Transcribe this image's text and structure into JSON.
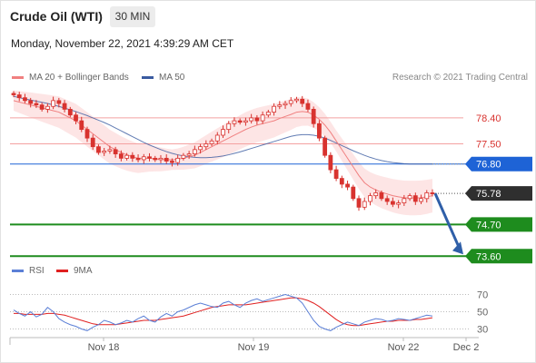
{
  "header": {
    "title": "Crude Oil (WTI)",
    "timeframe": "30 MIN"
  },
  "datetime": "Monday, November 22, 2021 4:39:29 AM CET",
  "legend": {
    "ma20": "MA 20 + Bollinger Bands",
    "ma50": "MA 50",
    "credit": "Research © 2021 Trading Central",
    "rsi": "RSI",
    "ma9": "9MA"
  },
  "colors": {
    "ma20": "#f08080",
    "ma50": "#3a5ba0",
    "band": "#fde0e0",
    "candle": "#d8332f",
    "support": "#1e8c1e",
    "pivot": "#1e63d6",
    "last": "#2f2f2f",
    "rsi": "#5b7fd6",
    "rsi_ma": "#e02020",
    "arrow": "#2f5fa8"
  },
  "chart_data": [
    {
      "type": "line",
      "title": "",
      "ylim": [
        73.2,
        79.5
      ],
      "x_ticks": [
        "Nov 18",
        "Nov 19",
        "Nov 22",
        "Dec 2"
      ],
      "levels": [
        {
          "label": "78.40",
          "value": 78.4,
          "kind": "resistance"
        },
        {
          "label": "77.50",
          "value": 77.5,
          "kind": "resistance"
        },
        {
          "label": "76.80",
          "value": 76.8,
          "kind": "pivot"
        },
        {
          "label": "75.78",
          "value": 75.78,
          "kind": "last"
        },
        {
          "label": "74.70",
          "value": 74.7,
          "kind": "support"
        },
        {
          "label": "73.60",
          "value": 73.6,
          "kind": "support"
        }
      ],
      "close": [
        79.2,
        79.1,
        79.0,
        78.9,
        78.85,
        78.7,
        78.8,
        79.0,
        78.9,
        78.7,
        78.5,
        78.3,
        78.0,
        77.7,
        77.4,
        77.2,
        77.25,
        77.3,
        77.15,
        77.0,
        77.1,
        77.0,
        76.95,
        77.05,
        77.0,
        76.95,
        77.0,
        76.9,
        76.85,
        77.0,
        77.1,
        77.15,
        77.3,
        77.4,
        77.5,
        77.6,
        77.8,
        78.0,
        78.2,
        78.3,
        78.25,
        78.3,
        78.4,
        78.3,
        78.5,
        78.6,
        78.8,
        78.85,
        78.9,
        79.0,
        79.05,
        78.9,
        78.7,
        78.2,
        77.7,
        77.1,
        76.6,
        76.3,
        76.1,
        76.0,
        75.6,
        75.3,
        75.5,
        75.7,
        75.8,
        75.6,
        75.5,
        75.4,
        75.45,
        75.6,
        75.7,
        75.5,
        75.6,
        75.8,
        75.78
      ],
      "series": [
        {
          "name": "MA 20",
          "values": [
            79.0,
            78.95,
            78.9,
            78.85,
            78.8,
            78.75,
            78.7,
            78.65,
            78.6,
            78.5,
            78.4,
            78.3,
            78.15,
            78.0,
            77.85,
            77.7,
            77.55,
            77.4,
            77.3,
            77.2,
            77.12,
            77.05,
            77.0,
            77.0,
            77.0,
            76.98,
            76.96,
            76.95,
            76.95,
            76.97,
            77.0,
            77.05,
            77.1,
            77.2,
            77.3,
            77.4,
            77.5,
            77.6,
            77.7,
            77.8,
            77.9,
            78.0,
            78.08,
            78.15,
            78.2,
            78.25,
            78.3,
            78.38,
            78.45,
            78.52,
            78.6,
            78.62,
            78.6,
            78.5,
            78.35,
            78.15,
            77.9,
            77.6,
            77.3,
            77.0,
            76.7,
            76.4,
            76.15,
            76.0,
            75.9,
            75.82,
            75.76,
            75.7,
            75.66,
            75.63,
            75.62,
            75.62,
            75.63,
            75.66,
            75.7
          ]
        },
        {
          "name": "MA 50",
          "values": [
            79.15,
            79.1,
            79.06,
            79.02,
            78.98,
            78.94,
            78.9,
            78.85,
            78.8,
            78.74,
            78.68,
            78.62,
            78.55,
            78.48,
            78.4,
            78.32,
            78.24,
            78.15,
            78.05,
            77.95,
            77.85,
            77.75,
            77.65,
            77.55,
            77.46,
            77.38,
            77.3,
            77.23,
            77.17,
            77.12,
            77.08,
            77.05,
            77.03,
            77.02,
            77.02,
            77.03,
            77.05,
            77.08,
            77.12,
            77.17,
            77.22,
            77.28,
            77.34,
            77.4,
            77.46,
            77.52,
            77.58,
            77.64,
            77.7,
            77.76,
            77.8,
            77.82,
            77.82,
            77.8,
            77.76,
            77.7,
            77.62,
            77.53,
            77.44,
            77.35,
            77.26,
            77.18,
            77.1,
            77.03,
            76.97,
            76.92,
            76.88,
            76.85,
            76.83,
            76.81,
            76.8,
            76.8,
            76.8,
            76.8,
            76.8
          ]
        }
      ],
      "forecast": {
        "from": 75.78,
        "to": 73.6
      }
    },
    {
      "type": "line",
      "title": "",
      "ylim": [
        20,
        80
      ],
      "y_ticks": [
        "70",
        "50",
        "30"
      ],
      "series": [
        {
          "name": "RSI",
          "values": [
            52,
            48,
            45,
            50,
            44,
            47,
            55,
            50,
            42,
            38,
            35,
            33,
            30,
            28,
            32,
            35,
            40,
            38,
            35,
            37,
            40,
            38,
            42,
            45,
            40,
            38,
            44,
            48,
            45,
            50,
            52,
            55,
            58,
            60,
            58,
            56,
            55,
            60,
            62,
            58,
            55,
            60,
            63,
            65,
            62,
            64,
            66,
            68,
            70,
            68,
            66,
            60,
            50,
            40,
            33,
            30,
            28,
            32,
            35,
            38,
            36,
            34,
            38,
            40,
            42,
            41,
            39,
            40,
            42,
            41,
            40,
            42,
            44,
            46,
            45
          ]
        },
        {
          "name": "9MA",
          "values": [
            48,
            48,
            47,
            47,
            47,
            47,
            48,
            48,
            47,
            46,
            44,
            42,
            40,
            38,
            36,
            35,
            35,
            35,
            35,
            36,
            37,
            38,
            39,
            40,
            40,
            40,
            41,
            42,
            43,
            44,
            45,
            47,
            49,
            51,
            53,
            55,
            56,
            57,
            58,
            58,
            58,
            58,
            59,
            60,
            61,
            62,
            63,
            64,
            65,
            66,
            66,
            65,
            63,
            60,
            56,
            51,
            46,
            41,
            37,
            35,
            34,
            34,
            35,
            36,
            37,
            38,
            39,
            39,
            40,
            40,
            40,
            41,
            41,
            42,
            43
          ]
        }
      ]
    }
  ]
}
